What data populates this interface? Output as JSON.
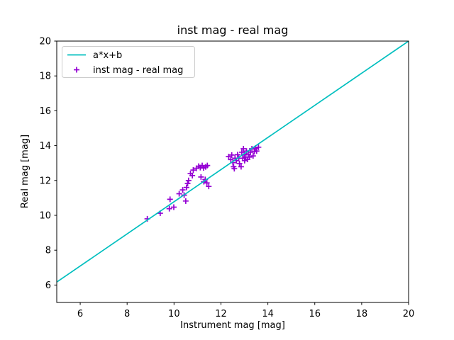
{
  "figure": {
    "title": "inst mag - real mag",
    "xlabel": "Instrument mag [mag]",
    "ylabel": "Real mag [mag]"
  },
  "legend": {
    "position": "upper left",
    "entries": [
      {
        "label": "a*x+b",
        "type": "line",
        "color": "#00bfbf"
      },
      {
        "label": "inst mag - real mag",
        "type": "plus-marker",
        "color": "#9400d3"
      }
    ]
  },
  "chart_data": {
    "type": "scatter",
    "title": "inst mag - real mag",
    "xlabel": "Instrument mag [mag]",
    "ylabel": "Real mag [mag]",
    "xlim": [
      5,
      20
    ],
    "ylim": [
      5,
      20
    ],
    "xticks": [
      6,
      8,
      10,
      12,
      14,
      16,
      18,
      20
    ],
    "yticks": [
      6,
      8,
      10,
      12,
      14,
      16,
      18,
      20
    ],
    "grid": false,
    "legend_position": "upper left",
    "series": [
      {
        "name": "a*x+b",
        "type": "line",
        "color": "#00bfbf",
        "x": [
          5,
          20
        ],
        "y": [
          6.17,
          20
        ]
      },
      {
        "name": "inst mag - real mag",
        "type": "scatter",
        "marker": "plus",
        "color": "#9400d3",
        "points": [
          [
            8.86,
            9.8
          ],
          [
            9.41,
            10.12
          ],
          [
            9.8,
            10.38
          ],
          [
            9.83,
            10.92
          ],
          [
            9.99,
            10.47
          ],
          [
            10.22,
            11.24
          ],
          [
            10.37,
            11.46
          ],
          [
            10.43,
            11.16
          ],
          [
            10.5,
            10.82
          ],
          [
            10.53,
            11.6
          ],
          [
            10.58,
            11.83
          ],
          [
            10.62,
            12.0
          ],
          [
            10.7,
            12.4
          ],
          [
            10.78,
            12.28
          ],
          [
            10.82,
            12.6
          ],
          [
            10.95,
            12.7
          ],
          [
            11.05,
            12.82
          ],
          [
            11.12,
            12.74
          ],
          [
            11.2,
            12.86
          ],
          [
            11.26,
            12.72
          ],
          [
            11.35,
            12.78
          ],
          [
            11.42,
            12.86
          ],
          [
            11.15,
            12.2
          ],
          [
            11.27,
            11.93
          ],
          [
            11.33,
            12.06
          ],
          [
            11.4,
            11.86
          ],
          [
            11.48,
            11.66
          ],
          [
            12.33,
            13.37
          ],
          [
            12.42,
            13.2
          ],
          [
            12.46,
            13.46
          ],
          [
            12.51,
            13.02
          ],
          [
            12.54,
            12.79
          ],
          [
            12.57,
            12.68
          ],
          [
            12.6,
            13.28
          ],
          [
            12.66,
            13.14
          ],
          [
            12.71,
            13.48
          ],
          [
            12.76,
            13.28
          ],
          [
            12.79,
            12.97
          ],
          [
            12.86,
            12.79
          ],
          [
            12.89,
            13.62
          ],
          [
            12.93,
            13.28
          ],
          [
            12.96,
            13.82
          ],
          [
            12.99,
            13.48
          ],
          [
            13.01,
            13.14
          ],
          [
            13.06,
            13.34
          ],
          [
            13.09,
            13.69
          ],
          [
            13.13,
            13.21
          ],
          [
            13.16,
            13.51
          ],
          [
            13.21,
            13.34
          ],
          [
            13.26,
            13.62
          ],
          [
            13.32,
            13.82
          ],
          [
            13.37,
            13.41
          ],
          [
            13.42,
            13.65
          ],
          [
            13.47,
            13.86
          ],
          [
            13.52,
            13.69
          ],
          [
            13.6,
            13.91
          ]
        ]
      }
    ]
  }
}
